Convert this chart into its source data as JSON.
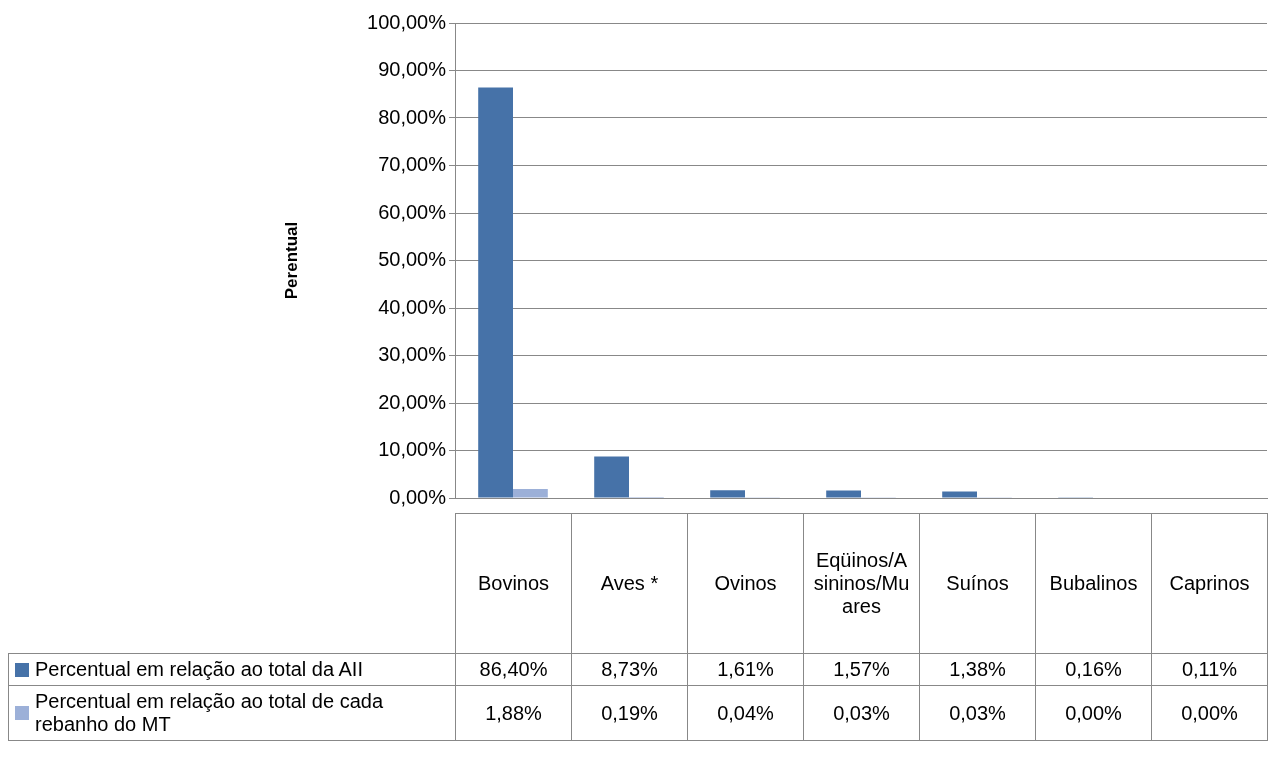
{
  "chart_data": {
    "type": "bar",
    "ylabel": "Perentual",
    "categories": [
      "Bovinos",
      "Aves *",
      "Ovinos",
      "Eqüinos/Asininos/Muares",
      "Suínos",
      "Bubalinos",
      "Caprinos"
    ],
    "series": [
      {
        "name": "Percentual em relação ao total da AII",
        "color": "#4672a8",
        "values": [
          86.4,
          8.73,
          1.61,
          1.57,
          1.38,
          0.16,
          0.11
        ],
        "value_labels": [
          "86,40%",
          "8,73%",
          "1,61%",
          "1,57%",
          "1,38%",
          "0,16%",
          "0,11%"
        ]
      },
      {
        "name": "Percentual em relação ao total de cada rebanho do MT",
        "color": "#9cb0d8",
        "values": [
          1.88,
          0.19,
          0.04,
          0.03,
          0.03,
          0.0,
          0.0
        ],
        "value_labels": [
          "1,88%",
          "0,19%",
          "0,04%",
          "0,03%",
          "0,03%",
          "0,00%",
          "0,00%"
        ]
      }
    ],
    "ylim": [
      0,
      100
    ],
    "yticks": [
      {
        "value": 0,
        "label": "0,00%"
      },
      {
        "value": 10,
        "label": "10,00%"
      },
      {
        "value": 20,
        "label": "20,00%"
      },
      {
        "value": 30,
        "label": "30,00%"
      },
      {
        "value": 40,
        "label": "40,00%"
      },
      {
        "value": 50,
        "label": "50,00%"
      },
      {
        "value": 60,
        "label": "60,00%"
      },
      {
        "value": 70,
        "label": "70,00%"
      },
      {
        "value": 80,
        "label": "80,00%"
      },
      {
        "value": 90,
        "label": "90,00%"
      },
      {
        "value": 100,
        "label": "100,00%"
      }
    ],
    "grid": "y",
    "legend": "bottom",
    "data_labels": true
  }
}
